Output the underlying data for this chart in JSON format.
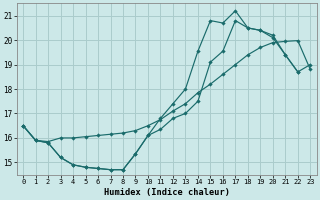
{
  "xlabel": "Humidex (Indice chaleur)",
  "xlim": [
    -0.5,
    23.5
  ],
  "ylim": [
    14.5,
    21.5
  ],
  "yticks": [
    15,
    16,
    17,
    18,
    19,
    20,
    21
  ],
  "xticks": [
    0,
    1,
    2,
    3,
    4,
    5,
    6,
    7,
    8,
    9,
    10,
    11,
    12,
    13,
    14,
    15,
    16,
    17,
    18,
    19,
    20,
    21,
    22,
    23
  ],
  "bg_color": "#cce8e8",
  "grid_color": "#aacccc",
  "line_color": "#1a6b6b",
  "curve1_x": [
    0,
    1,
    2,
    3,
    4,
    5,
    6,
    7,
    8,
    9,
    10,
    11,
    12,
    13,
    14,
    15,
    16,
    17,
    18,
    19,
    20,
    21,
    22,
    23
  ],
  "curve1_y": [
    16.5,
    15.9,
    15.8,
    15.2,
    14.9,
    14.8,
    14.75,
    14.7,
    14.7,
    15.35,
    16.1,
    16.35,
    16.8,
    17.0,
    17.5,
    19.1,
    19.55,
    20.8,
    20.5,
    20.4,
    20.1,
    19.4,
    18.7,
    19.0
  ],
  "curve2_x": [
    0,
    1,
    2,
    3,
    4,
    5,
    6,
    7,
    8,
    9,
    10,
    11,
    12,
    13,
    14,
    15,
    16,
    17,
    18,
    19,
    20,
    21,
    22
  ],
  "curve2_y": [
    16.5,
    15.9,
    15.8,
    15.2,
    14.9,
    14.8,
    14.75,
    14.7,
    14.7,
    15.35,
    16.1,
    16.8,
    17.4,
    18.0,
    19.55,
    20.8,
    20.7,
    21.2,
    20.5,
    20.4,
    20.2,
    19.4,
    18.7
  ],
  "curve3_x": [
    0,
    1,
    2,
    3,
    4,
    5,
    6,
    7,
    8,
    9,
    10,
    11,
    12,
    13,
    14,
    15,
    16,
    17,
    18,
    19,
    20,
    21,
    22,
    23
  ],
  "curve3_y": [
    16.5,
    15.9,
    15.85,
    16.0,
    16.0,
    16.05,
    16.1,
    16.15,
    16.2,
    16.3,
    16.5,
    16.75,
    17.1,
    17.4,
    17.85,
    18.2,
    18.6,
    19.0,
    19.4,
    19.7,
    19.9,
    19.95,
    19.98,
    18.8
  ]
}
